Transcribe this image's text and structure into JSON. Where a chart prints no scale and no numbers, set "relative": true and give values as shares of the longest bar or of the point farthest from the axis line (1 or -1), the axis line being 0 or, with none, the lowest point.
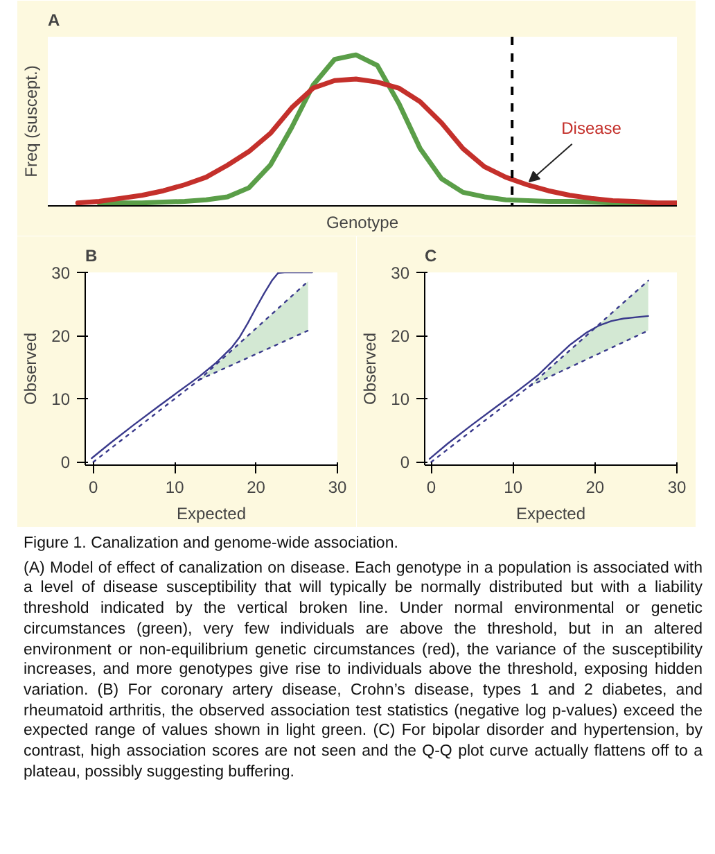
{
  "chart_data": [
    {
      "type": "line",
      "title": "A",
      "xlabel": "Genotype",
      "ylabel": "Freq (suscept.)",
      "relative": true,
      "grid": false,
      "marker": "none",
      "line_style": "solid",
      "categories": [
        null,
        null,
        null,
        null,
        null,
        null,
        null,
        null,
        null,
        null,
        null,
        null,
        null,
        null,
        null,
        null,
        null,
        null,
        null,
        null,
        null,
        null,
        null,
        null,
        null,
        null,
        null,
        null,
        null
      ],
      "series": [
        {
          "color": "#5a9e48",
          "values": [
            null,
            0.02,
            0.02,
            0.02,
            0.025,
            0.03,
            0.04,
            0.06,
            0.12,
            0.27,
            0.52,
            0.8,
            0.97,
            1.0,
            0.93,
            0.68,
            0.38,
            0.18,
            0.09,
            0.06,
            0.04,
            0.035,
            0.03,
            0.03,
            0.025,
            0.02,
            0.02,
            0.02,
            null
          ]
        },
        {
          "color": "#c4302b",
          "values": [
            0.02,
            0.03,
            0.05,
            0.07,
            0.1,
            0.14,
            0.19,
            0.27,
            0.36,
            0.48,
            0.65,
            0.78,
            0.83,
            0.84,
            0.82,
            0.78,
            0.69,
            0.55,
            0.38,
            0.26,
            0.19,
            0.14,
            0.1,
            0.07,
            0.05,
            0.035,
            0.03,
            0.02,
            0.02
          ]
        }
      ],
      "annotations": [
        "Disease"
      ]
    },
    {
      "type": "line",
      "title": "B",
      "xlabel": "Expected",
      "ylabel": "Observed",
      "grid": false,
      "marker": "none",
      "xlim": [
        -1,
        30
      ],
      "ylim": [
        -0.5,
        30
      ],
      "xticks": [
        0,
        10,
        20,
        30
      ],
      "yticks": [
        0,
        10,
        20,
        30
      ],
      "series": [
        {
          "color": "#3a3a8c",
          "line_style": "solid",
          "x": [
            -0.2,
            2,
            5,
            8,
            10,
            13,
            15,
            17,
            18,
            19,
            20,
            21,
            22,
            22.7,
            23.5,
            26.9
          ],
          "values": [
            0.6,
            2.9,
            5.9,
            8.8,
            10.7,
            13.5,
            15.6,
            18.1,
            19.8,
            22,
            24.4,
            26.7,
            28.8,
            29.9,
            30,
            30
          ]
        },
        {
          "color": "#3a3a8c",
          "line_style": "dotted",
          "x": [
            0,
            13,
            26.4
          ],
          "values": [
            0,
            13,
            28.6
          ],
          "lower": [
            0,
            13,
            20.8
          ],
          "upper": [
            0,
            13,
            28.6
          ]
        },
        {
          "color": "#3a3a8c",
          "line_style": "dotted",
          "x": [
            13,
            26.4
          ],
          "values": [
            13,
            20.8
          ]
        }
      ]
    },
    {
      "type": "line",
      "title": "C",
      "xlabel": "Expected",
      "ylabel": "Observed",
      "grid": false,
      "marker": "none",
      "xlim": [
        -0.8,
        30
      ],
      "ylim": [
        -0.5,
        30
      ],
      "xticks": [
        0,
        10,
        20,
        30
      ],
      "yticks": [
        0,
        10,
        20,
        30
      ],
      "series": [
        {
          "color": "#3a3a8c",
          "line_style": "solid",
          "x": [
            -0.2,
            2,
            5,
            8,
            10,
            13,
            15,
            17,
            19,
            20.5,
            22,
            23.5,
            26.5
          ],
          "values": [
            0.5,
            2.9,
            5.9,
            8.8,
            10.7,
            13.7,
            16.2,
            18.6,
            20.5,
            21.6,
            22.3,
            22.7,
            23.1
          ]
        },
        {
          "color": "#3a3a8c",
          "line_style": "dotted",
          "x": [
            0,
            12,
            26.5
          ],
          "values": [
            0,
            12,
            28.7
          ],
          "lower": [
            0,
            12,
            20.8
          ],
          "upper": [
            0,
            12,
            28.7
          ]
        },
        {
          "color": "#3a3a8c",
          "line_style": "dotted",
          "x": [
            12,
            26.5
          ],
          "values": [
            12,
            20.8
          ]
        }
      ]
    },
    {
      "type": "other",
      "title": "Figure 1.  Canalization and genome-wide association.",
      "annotations": [
        "(A) Model of effect of canalization on disease. Each genotype in a population is associated with a level of disease susceptibility that will typically be normally distributed but with a liability threshold indicated by the vertical broken line. Under normal environmental or genetic circumstances (green), very few individuals are above the threshold, but in an altered environment or non-equilibrium genetic circumstances (red), the variance of the susceptibility increases, and more genotypes give rise to individuals above the threshold, exposing hidden variation. (B) For coronary artery disease, Crohn’s disease, types 1 and 2 diabetes, and rheumatoid arthritis, the observed association test statistics (negative log p-values) exceed the expected range of values shown in light green. (C) For bipolar disorder and hypertension, by contrast, high association scores are not seen and the Q-Q plot curve actually flattens off to a plateau, possibly suggesting buffering."
      ]
    }
  ]
}
